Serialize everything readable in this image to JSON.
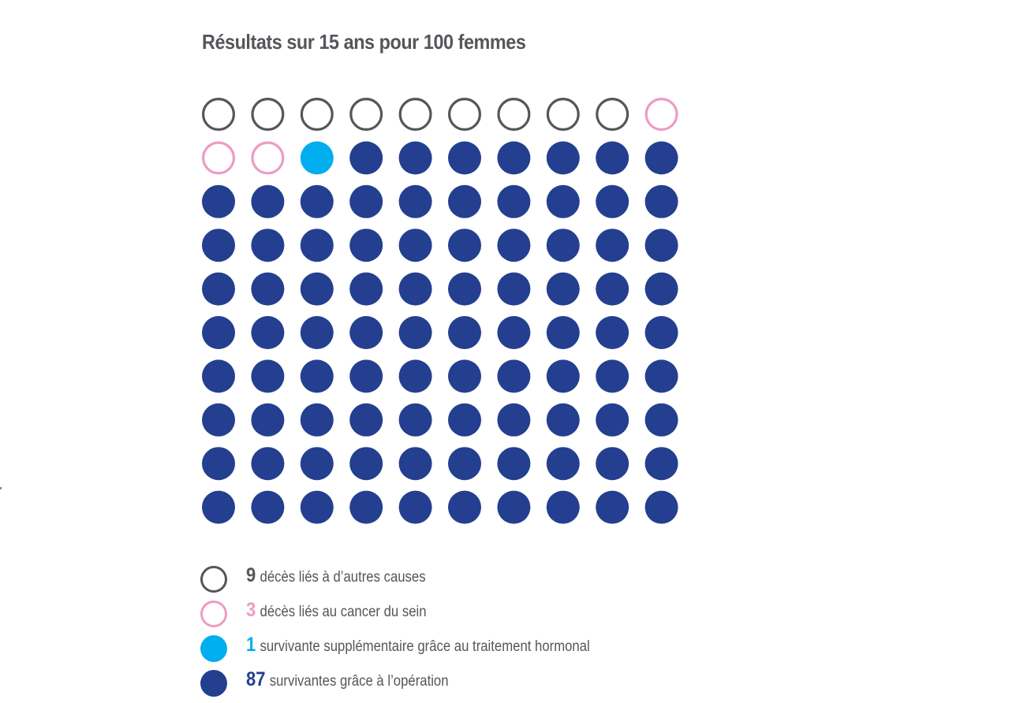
{
  "chart_data": {
    "type": "icon-array",
    "title": "Résultats sur 15 ans pour 100 femmes",
    "total": 100,
    "rows": 10,
    "columns": 10,
    "fill_order": "row-major",
    "series": [
      {
        "key": "other",
        "count": 9,
        "count_label": "9",
        "label": "décès liés à d’autres causes",
        "color": "#55565a",
        "style": "outline"
      },
      {
        "key": "cancer",
        "count": 3,
        "count_label": "3",
        "label": "décès liés au cancer du sein",
        "color": "#ee9bc4",
        "style": "outline"
      },
      {
        "key": "hormonal",
        "count": 1,
        "count_label": "1",
        "label": "survivante supplémentaire grâce au traitement hormonal",
        "color": "#00aeef",
        "style": "filled"
      },
      {
        "key": "surgery",
        "count": 87,
        "count_label": "87",
        "label": "survivantes grâce à l’opération",
        "color": "#243f8f",
        "style": "filled"
      }
    ]
  }
}
